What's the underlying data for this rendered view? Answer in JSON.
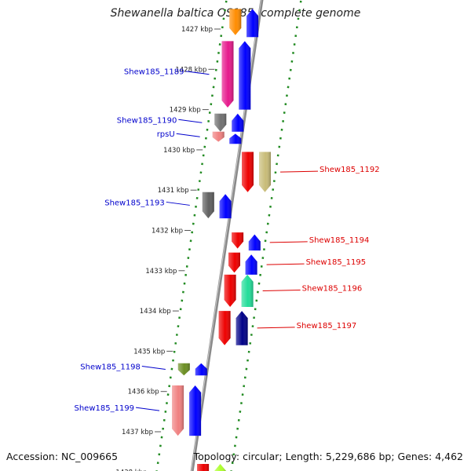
{
  "title": "Shewanella baltica OS185, complete genome",
  "footer": {
    "accession": "Accession: NC_009665",
    "topology": "Topology: circular; Length: 5,229,686 bp; Genes: 4,462"
  },
  "axis": {
    "ticks": [
      {
        "label": "1427 kbp",
        "kbp": 1427
      },
      {
        "label": "1428 kbp",
        "kbp": 1428
      },
      {
        "label": "1429 kbp",
        "kbp": 1429
      },
      {
        "label": "1430 kbp",
        "kbp": 1430
      },
      {
        "label": "1431 kbp",
        "kbp": 1431
      },
      {
        "label": "1432 kbp",
        "kbp": 1432
      },
      {
        "label": "1433 kbp",
        "kbp": 1433
      },
      {
        "label": "1434 kbp",
        "kbp": 1434
      },
      {
        "label": "1435 kbp",
        "kbp": 1435
      },
      {
        "label": "1436 kbp",
        "kbp": 1436
      },
      {
        "label": "1437 kbp",
        "kbp": 1437
      },
      {
        "label": "1438 kbp",
        "kbp": 1438
      }
    ]
  },
  "colors": {
    "forward_label": "#0000cc",
    "reverse_label": "#dd0000",
    "dots": "#228b22",
    "backbone": "#8a8a8a"
  },
  "genes": [
    {
      "name": "",
      "strand": "-",
      "track": 0,
      "start": 1426.5,
      "end": 1427.15,
      "color": "#ff8c00"
    },
    {
      "name": "",
      "strand": "+",
      "track": 1,
      "start": 1426.5,
      "end": 1427.2,
      "color": "#0000ff"
    },
    {
      "name": "Shew185_1189",
      "strand": "-",
      "track": 0,
      "start": 1427.3,
      "end": 1428.95,
      "color": "#e6198c"
    },
    {
      "name": "",
      "strand": "+",
      "track": 1,
      "start": 1427.3,
      "end": 1429.0,
      "color": "#0000ff"
    },
    {
      "name": "Shew185_1190",
      "strand": "-",
      "track": 0,
      "start": 1429.1,
      "end": 1429.55,
      "color": "#707070"
    },
    {
      "name": "",
      "strand": "+",
      "track": 1,
      "start": 1429.1,
      "end": 1429.55,
      "color": "#0000ff"
    },
    {
      "name": "rpsU",
      "strand": "-",
      "track": 0,
      "start": 1429.55,
      "end": 1429.8,
      "color": "#f08080"
    },
    {
      "name": "",
      "strand": "+",
      "track": 1,
      "start": 1429.6,
      "end": 1429.85,
      "color": "#0000ff"
    },
    {
      "name": "",
      "strand": "-",
      "track": 2,
      "start": 1430.05,
      "end": 1431.05,
      "color": "#ee0000"
    },
    {
      "name": "Shew185_1192",
      "strand": "-",
      "track": 3,
      "start": 1430.05,
      "end": 1431.05,
      "color": "#c8bc78"
    },
    {
      "name": "Shew185_1193",
      "strand": "-",
      "track": 0,
      "start": 1431.05,
      "end": 1431.7,
      "color": "#606060"
    },
    {
      "name": "",
      "strand": "+",
      "track": 1,
      "start": 1431.1,
      "end": 1431.7,
      "color": "#0000ff"
    },
    {
      "name": "",
      "strand": "-",
      "track": 2,
      "start": 1432.05,
      "end": 1432.45,
      "color": "#ee0000"
    },
    {
      "name": "Shew185_1194",
      "strand": "+",
      "track": 3,
      "start": 1432.1,
      "end": 1432.5,
      "color": "#0000ff"
    },
    {
      "name": "",
      "strand": "-",
      "track": 2,
      "start": 1432.55,
      "end": 1433.05,
      "color": "#ee0000"
    },
    {
      "name": "Shew185_1195",
      "strand": "+",
      "track": 3,
      "start": 1432.6,
      "end": 1433.1,
      "color": "#0000ff"
    },
    {
      "name": "",
      "strand": "-",
      "track": 2,
      "start": 1433.1,
      "end": 1433.9,
      "color": "#ee0000"
    },
    {
      "name": "Shew185_1196",
      "strand": "+",
      "track": 3,
      "start": 1433.1,
      "end": 1433.9,
      "color": "#22dd99"
    },
    {
      "name": "",
      "strand": "-",
      "track": 2,
      "start": 1434.0,
      "end": 1434.85,
      "color": "#ee0000"
    },
    {
      "name": "Shew185_1197",
      "strand": "+",
      "track": 3,
      "start": 1434.0,
      "end": 1434.85,
      "color": "#000088"
    },
    {
      "name": "Shew185_1198",
      "strand": "-",
      "track": 0,
      "start": 1435.3,
      "end": 1435.6,
      "color": "#6b8e23"
    },
    {
      "name": "",
      "strand": "+",
      "track": 1,
      "start": 1435.3,
      "end": 1435.6,
      "color": "#0000ff"
    },
    {
      "name": "Shew185_1199",
      "strand": "-",
      "track": 0,
      "start": 1435.85,
      "end": 1437.1,
      "color": "#f08080"
    },
    {
      "name": "",
      "strand": "+",
      "track": 1,
      "start": 1435.85,
      "end": 1437.1,
      "color": "#0000ff"
    },
    {
      "name": "",
      "strand": "-",
      "track": 2,
      "start": 1437.8,
      "end": 1438.3,
      "color": "#ee0000"
    },
    {
      "name": "",
      "strand": "+",
      "track": 3,
      "start": 1437.8,
      "end": 1438.3,
      "color": "#adff2f"
    }
  ]
}
